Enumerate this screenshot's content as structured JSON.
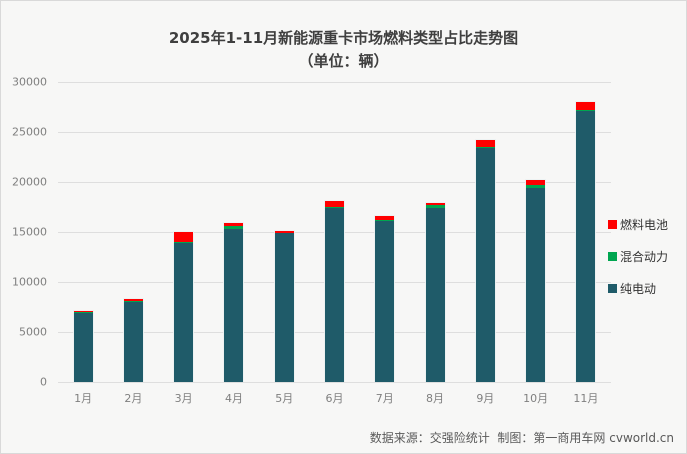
{
  "title": "2025年1-11月新能源重卡市场燃料类型占比走势图",
  "subtitle": "（单位：辆）",
  "footer": "数据来源：交强险统计  制图：第一商用车网 cvworld.cn",
  "colors": {
    "background": "#f7f7f6",
    "gridline": "#dedede",
    "axis_text": "#7f7f7f",
    "title_text": "#3f3f3f",
    "footer_text": "#595959",
    "pure_electric": "#1f5b69",
    "hybrid": "#00a650",
    "fuel_cell": "#ff0000"
  },
  "chart_data": {
    "type": "bar",
    "stacked": true,
    "title": "2025年1-11月新能源重卡市场燃料类型占比走势图",
    "subtitle": "（单位：辆）",
    "categories": [
      "1月",
      "2月",
      "3月",
      "4月",
      "5月",
      "6月",
      "7月",
      "8月",
      "9月",
      "10月",
      "11月"
    ],
    "series": [
      {
        "name": "纯电动",
        "color": "#1f5b69",
        "values": [
          6950,
          8050,
          13950,
          15350,
          14900,
          17400,
          16150,
          17450,
          23450,
          19450,
          27150
        ]
      },
      {
        "name": "混合动力",
        "color": "#00a650",
        "values": [
          20,
          50,
          100,
          250,
          50,
          150,
          100,
          250,
          100,
          300,
          100
        ]
      },
      {
        "name": "燃料电池",
        "color": "#ff0000",
        "values": [
          130,
          200,
          950,
          300,
          150,
          550,
          400,
          200,
          700,
          450,
          750
        ]
      }
    ],
    "totals": [
      7100,
      8300,
      15000,
      15900,
      15100,
      18100,
      16650,
      17900,
      24250,
      20200,
      28000
    ],
    "xlabel": "",
    "ylabel": "",
    "ylim": [
      0,
      30000
    ],
    "yticks": [
      0,
      5000,
      10000,
      15000,
      20000,
      25000,
      30000
    ],
    "grid": true,
    "legend_position": "right",
    "legend_order": [
      "燃料电池",
      "混合动力",
      "纯电动"
    ]
  }
}
